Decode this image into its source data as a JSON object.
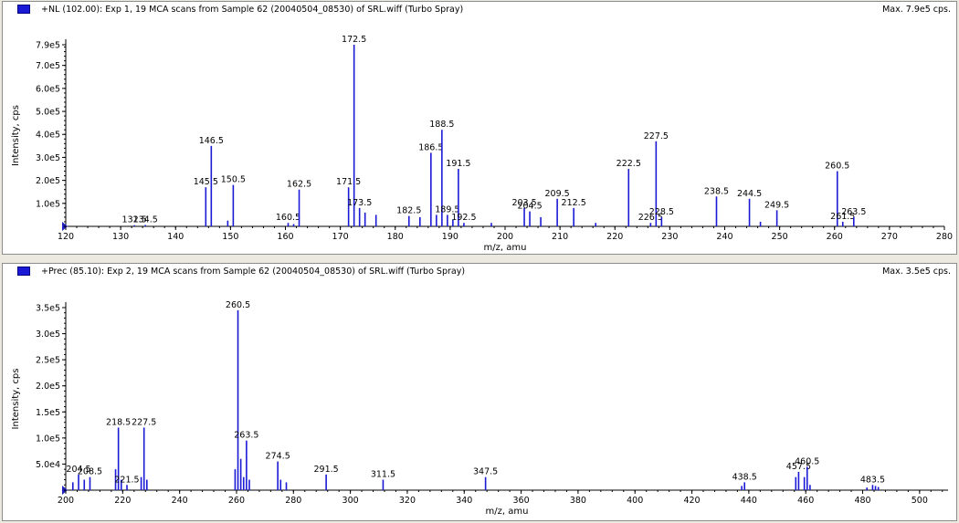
{
  "chart_data": [
    {
      "type": "bar",
      "title": "+NL (102.00): Exp 1, 19 MCA scans from Sample 62 (20040504_08530) of SRL.wiff (Turbo Spray)",
      "max_label": "Max. 7.9e5 cps.",
      "xlabel": "m/z, amu",
      "ylabel": "Intensity, cps",
      "xlim": [
        120,
        280
      ],
      "ylim": [
        0,
        790000
      ],
      "xticks": [
        120,
        130,
        140,
        150,
        160,
        170,
        180,
        190,
        200,
        210,
        220,
        230,
        240,
        250,
        260,
        270,
        280
      ],
      "yticks": [
        {
          "v": 100000,
          "label": "1.0e5"
        },
        {
          "v": 200000,
          "label": "2.0e5"
        },
        {
          "v": 300000,
          "label": "3.0e5"
        },
        {
          "v": 400000,
          "label": "4.0e5"
        },
        {
          "v": 500000,
          "label": "5.0e5"
        },
        {
          "v": 600000,
          "label": "6.0e5"
        },
        {
          "v": 700000,
          "label": "7.0e5"
        },
        {
          "v": 790000,
          "label": "7.9e5"
        }
      ],
      "peaks": [
        {
          "x": 132.5,
          "y": 5000,
          "label": "132.5"
        },
        {
          "x": 134.5,
          "y": 6000,
          "label": "134.5"
        },
        {
          "x": 145.5,
          "y": 170000,
          "label": "145.5"
        },
        {
          "x": 146.5,
          "y": 350000,
          "label": "146.5"
        },
        {
          "x": 149.5,
          "y": 25000
        },
        {
          "x": 150.5,
          "y": 180000,
          "label": "150.5"
        },
        {
          "x": 160.5,
          "y": 15000,
          "label": "160.5"
        },
        {
          "x": 161.5,
          "y": 10000
        },
        {
          "x": 162.5,
          "y": 160000,
          "label": "162.5"
        },
        {
          "x": 171.5,
          "y": 170000,
          "label": "171.5"
        },
        {
          "x": 172.5,
          "y": 790000,
          "label": "172.5"
        },
        {
          "x": 173.5,
          "y": 80000,
          "label": "173.5"
        },
        {
          "x": 174.5,
          "y": 60000
        },
        {
          "x": 176.5,
          "y": 50000
        },
        {
          "x": 182.5,
          "y": 45000,
          "label": "182.5"
        },
        {
          "x": 184.5,
          "y": 40000
        },
        {
          "x": 186.5,
          "y": 320000,
          "label": "186.5"
        },
        {
          "x": 187.5,
          "y": 50000
        },
        {
          "x": 188.5,
          "y": 420000,
          "label": "188.5"
        },
        {
          "x": 189.5,
          "y": 50000,
          "label": "189.5"
        },
        {
          "x": 190.5,
          "y": 30000
        },
        {
          "x": 191.5,
          "y": 250000,
          "label": "191.5"
        },
        {
          "x": 192.5,
          "y": 15000,
          "label": "192.5"
        },
        {
          "x": 197.5,
          "y": 15000
        },
        {
          "x": 203.5,
          "y": 80000,
          "label": "203.5"
        },
        {
          "x": 204.5,
          "y": 65000,
          "label": "204.5"
        },
        {
          "x": 206.5,
          "y": 40000
        },
        {
          "x": 209.5,
          "y": 120000,
          "label": "209.5"
        },
        {
          "x": 212.5,
          "y": 80000,
          "label": "212.5"
        },
        {
          "x": 216.5,
          "y": 15000
        },
        {
          "x": 222.5,
          "y": 250000,
          "label": "222.5"
        },
        {
          "x": 226.5,
          "y": 15000,
          "label": "226.5"
        },
        {
          "x": 227.5,
          "y": 370000,
          "label": "227.5"
        },
        {
          "x": 228.5,
          "y": 40000,
          "label": "228.5"
        },
        {
          "x": 238.5,
          "y": 130000,
          "label": "238.5"
        },
        {
          "x": 244.5,
          "y": 120000,
          "label": "244.5"
        },
        {
          "x": 246.5,
          "y": 20000
        },
        {
          "x": 249.5,
          "y": 70000,
          "label": "249.5"
        },
        {
          "x": 260.5,
          "y": 240000,
          "label": "260.5"
        },
        {
          "x": 261.5,
          "y": 20000,
          "label": "261.5"
        },
        {
          "x": 263.5,
          "y": 40000,
          "label": "263.5"
        }
      ],
      "colors": {
        "peak": "#1a1ad6",
        "axis": "#000000"
      }
    },
    {
      "type": "bar",
      "title": "+Prec (85.10): Exp 2, 19 MCA scans from Sample 62 (20040504_08530) of SRL.wiff (Turbo Spray)",
      "max_label": "Max. 3.5e5 cps.",
      "xlabel": "m/z, amu",
      "ylabel": "Intensity, cps",
      "xlim": [
        200,
        510
      ],
      "ylim": [
        0,
        350000
      ],
      "xticks": [
        200,
        220,
        240,
        260,
        280,
        300,
        320,
        340,
        360,
        380,
        400,
        420,
        440,
        460,
        480,
        500
      ],
      "yticks": [
        {
          "v": 50000,
          "label": "5.0e4"
        },
        {
          "v": 100000,
          "label": "1.0e5"
        },
        {
          "v": 150000,
          "label": "1.5e5"
        },
        {
          "v": 200000,
          "label": "2.0e5"
        },
        {
          "v": 250000,
          "label": "2.5e5"
        },
        {
          "v": 300000,
          "label": "3.0e5"
        },
        {
          "v": 350000,
          "label": "3.5e5"
        }
      ],
      "peaks": [
        {
          "x": 202.5,
          "y": 15000
        },
        {
          "x": 204.5,
          "y": 30000,
          "label": "204.5"
        },
        {
          "x": 206.5,
          "y": 20000
        },
        {
          "x": 208.5,
          "y": 25000,
          "label": "208.5"
        },
        {
          "x": 217.5,
          "y": 40000
        },
        {
          "x": 218.5,
          "y": 120000,
          "label": "218.5"
        },
        {
          "x": 219.5,
          "y": 20000
        },
        {
          "x": 221.5,
          "y": 10000,
          "label": "221.5"
        },
        {
          "x": 226.5,
          "y": 25000
        },
        {
          "x": 227.5,
          "y": 120000,
          "label": "227.5"
        },
        {
          "x": 228.5,
          "y": 20000
        },
        {
          "x": 259.5,
          "y": 40000
        },
        {
          "x": 260.5,
          "y": 345000,
          "label": "260.5"
        },
        {
          "x": 261.5,
          "y": 60000
        },
        {
          "x": 262.5,
          "y": 25000
        },
        {
          "x": 263.5,
          "y": 95000,
          "label": "263.5"
        },
        {
          "x": 264.5,
          "y": 20000
        },
        {
          "x": 274.5,
          "y": 55000,
          "label": "274.5"
        },
        {
          "x": 275.5,
          "y": 20000
        },
        {
          "x": 277.5,
          "y": 15000
        },
        {
          "x": 291.5,
          "y": 30000,
          "label": "291.5"
        },
        {
          "x": 311.5,
          "y": 20000,
          "label": "311.5"
        },
        {
          "x": 347.5,
          "y": 25000,
          "label": "347.5"
        },
        {
          "x": 437.5,
          "y": 8000
        },
        {
          "x": 438.5,
          "y": 15000,
          "label": "438.5"
        },
        {
          "x": 456.5,
          "y": 25000
        },
        {
          "x": 457.5,
          "y": 35000,
          "label": "457.5"
        },
        {
          "x": 459.5,
          "y": 25000
        },
        {
          "x": 460.5,
          "y": 45000,
          "label": "460.5"
        },
        {
          "x": 461.5,
          "y": 10000
        },
        {
          "x": 481.5,
          "y": 5000
        },
        {
          "x": 483.5,
          "y": 10000,
          "label": "483.5"
        },
        {
          "x": 484.5,
          "y": 8000
        },
        {
          "x": 485.5,
          "y": 6000
        }
      ],
      "colors": {
        "peak": "#1a1ad6",
        "axis": "#000000"
      }
    }
  ]
}
